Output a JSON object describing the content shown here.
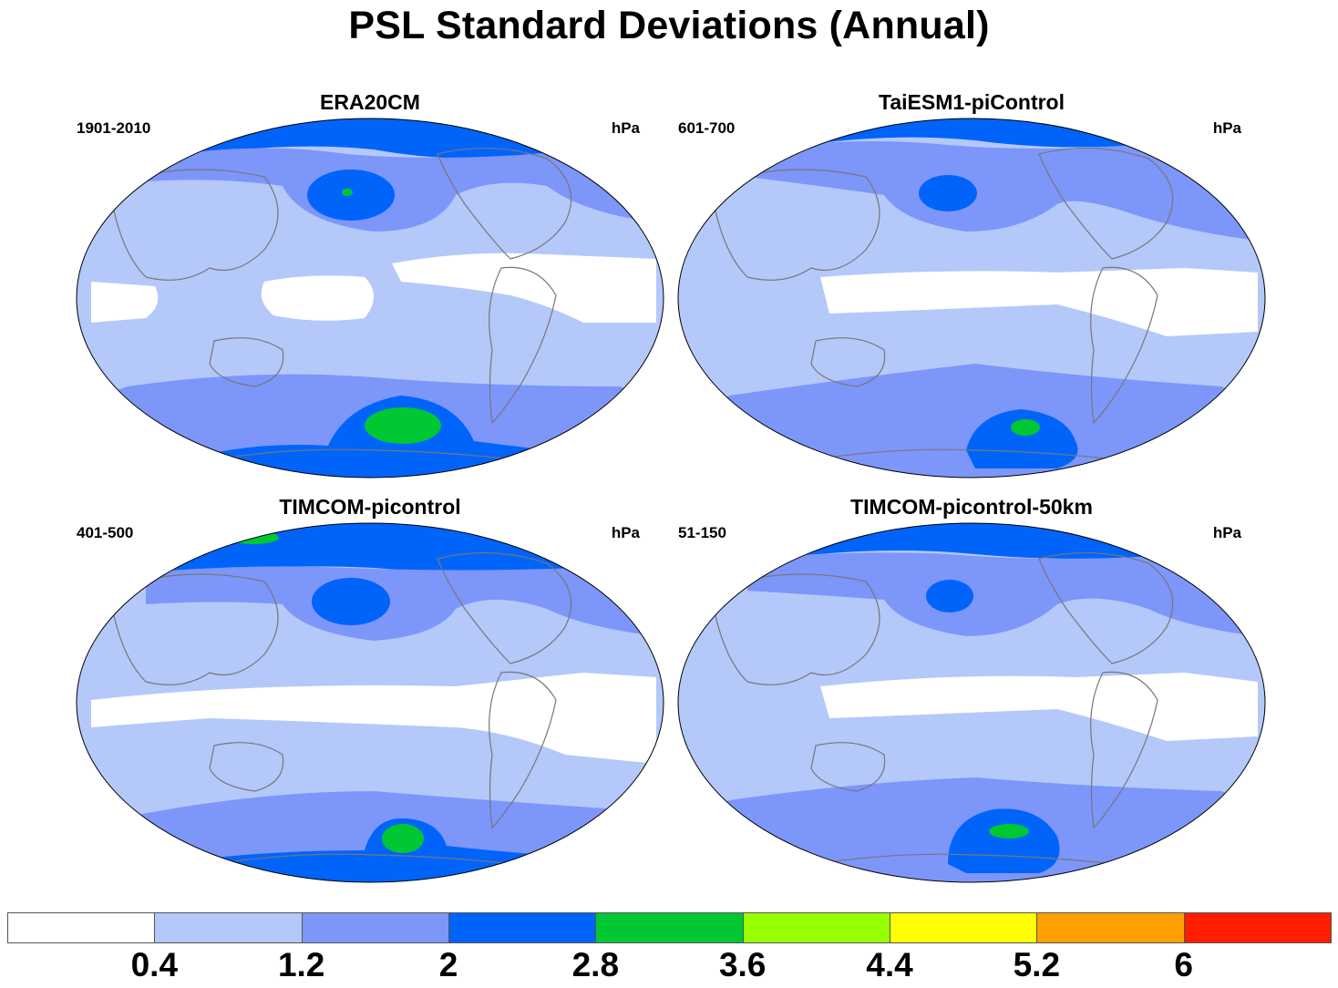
{
  "title": "PSL Standard Deviations (Annual)",
  "panels": [
    {
      "title": "ERA20CM",
      "period": "1901-2010",
      "units": "hPa"
    },
    {
      "title": "TaiESM1-piControl",
      "period": "601-700",
      "units": "hPa"
    },
    {
      "title": "TIMCOM-picontrol",
      "period": "401-500",
      "units": "hPa"
    },
    {
      "title": "TIMCOM-picontrol-50km",
      "period": "51-150",
      "units": "hPa"
    }
  ],
  "colorbar": {
    "colors": [
      "#ffffff",
      "#b4c8fa",
      "#7d96fa",
      "#0064fa",
      "#00c832",
      "#96ff00",
      "#ffff00",
      "#ffa000",
      "#ff1e00"
    ],
    "ticks": [
      "0.4",
      "1.2",
      "2",
      "2.8",
      "3.6",
      "4.4",
      "5.2",
      "6"
    ]
  }
}
